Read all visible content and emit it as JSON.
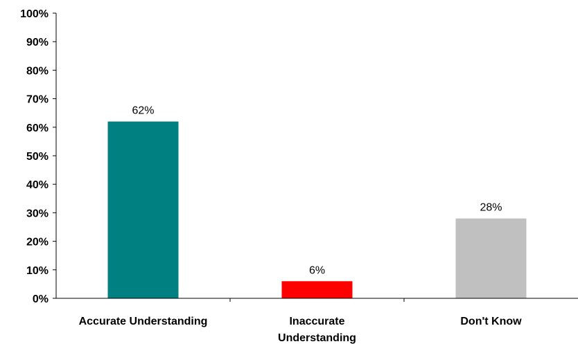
{
  "chart_data": {
    "type": "bar",
    "categories": [
      "Accurate Understanding",
      "Inaccurate Understanding",
      "Don't Know"
    ],
    "category_lines": [
      [
        "Accurate Understanding"
      ],
      [
        "Inaccurate",
        "Understanding"
      ],
      [
        "Don't Know"
      ]
    ],
    "values": [
      62,
      6,
      28
    ],
    "data_labels": [
      "62%",
      "6%",
      "28%"
    ],
    "colors": [
      "#008080",
      "#ff0000",
      "#c0c0c0"
    ],
    "ylim": [
      0,
      100
    ],
    "yticks": [
      0,
      10,
      20,
      30,
      40,
      50,
      60,
      70,
      80,
      90,
      100
    ],
    "ytick_labels": [
      "0%",
      "10%",
      "20%",
      "30%",
      "40%",
      "50%",
      "60%",
      "70%",
      "80%",
      "90%",
      "100%"
    ],
    "title": "",
    "xlabel": "",
    "ylabel": "",
    "grid": false,
    "legend": "none"
  }
}
